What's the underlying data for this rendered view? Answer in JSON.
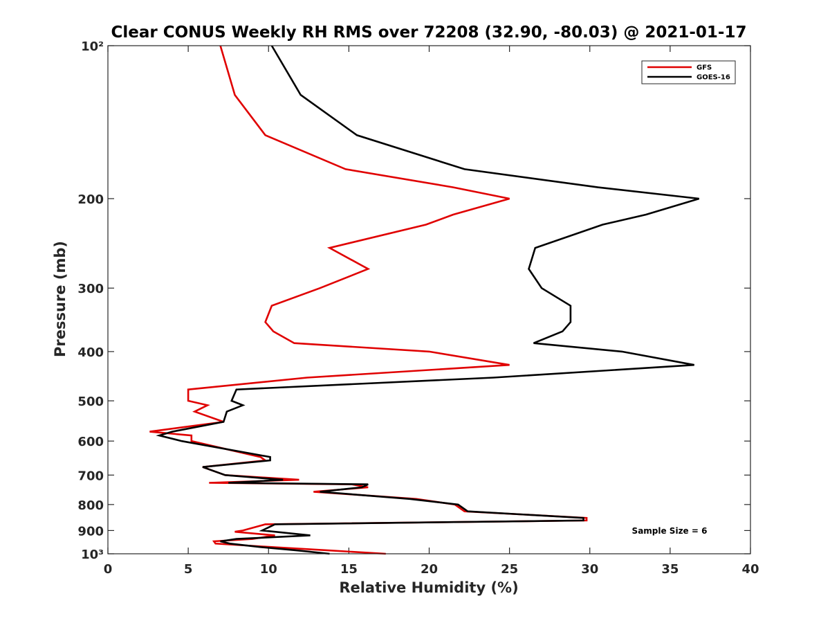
{
  "chart_data": {
    "type": "line",
    "title": "Clear CONUS Weekly RH RMS over 72208 (32.90, -80.03) @ 2021-01-17",
    "xlabel": "Relative Humidity (%)",
    "ylabel": "Pressure (mb)",
    "xlim": [
      0,
      40
    ],
    "ylim": [
      100,
      1000
    ],
    "y_scale": "log",
    "y_reversed": true,
    "grid": false,
    "legend_position": "top-right",
    "x_ticks": [
      0,
      5,
      10,
      15,
      20,
      25,
      30,
      35,
      40
    ],
    "x_tick_labels": [
      "0",
      "5",
      "10",
      "15",
      "20",
      "25",
      "30",
      "35",
      "40"
    ],
    "y_ticks": [
      100,
      200,
      300,
      400,
      500,
      600,
      700,
      800,
      900,
      1000
    ],
    "y_tick_labels": [
      "10²",
      "200",
      "300",
      "400",
      "500",
      "600",
      "700",
      "800",
      "900",
      "10³"
    ],
    "annotation": "Sample Size = 6",
    "series": [
      {
        "name": "GFS",
        "color": "#e00000",
        "points": [
          [
            7.0,
            100
          ],
          [
            7.9,
            125
          ],
          [
            9.8,
            150
          ],
          [
            14.8,
            175
          ],
          [
            21.5,
            190
          ],
          [
            25.0,
            200
          ],
          [
            21.5,
            215
          ],
          [
            19.8,
            225
          ],
          [
            13.8,
            250
          ],
          [
            16.2,
            275
          ],
          [
            13.2,
            300
          ],
          [
            10.2,
            325
          ],
          [
            9.8,
            350
          ],
          [
            10.3,
            365
          ],
          [
            11.6,
            385
          ],
          [
            20.0,
            400
          ],
          [
            25.0,
            425
          ],
          [
            12.4,
            450
          ],
          [
            5.0,
            475
          ],
          [
            5.0,
            500
          ],
          [
            6.2,
            510
          ],
          [
            5.4,
            525
          ],
          [
            7.2,
            550
          ],
          [
            2.6,
            575
          ],
          [
            5.2,
            585
          ],
          [
            5.2,
            600
          ],
          [
            9.5,
            645
          ],
          [
            9.8,
            655
          ],
          [
            5.9,
            675
          ],
          [
            7.3,
            700
          ],
          [
            11.9,
            715
          ],
          [
            6.3,
            725
          ],
          [
            15.2,
            730
          ],
          [
            16.2,
            740
          ],
          [
            12.8,
            755
          ],
          [
            19.2,
            780
          ],
          [
            21.6,
            800
          ],
          [
            22.2,
            825
          ],
          [
            29.8,
            850
          ],
          [
            29.8,
            860
          ],
          [
            9.8,
            875
          ],
          [
            8.4,
            900
          ],
          [
            7.9,
            905
          ],
          [
            10.4,
            920
          ],
          [
            9.0,
            935
          ],
          [
            6.6,
            945
          ],
          [
            6.7,
            955
          ],
          [
            10.2,
            970
          ],
          [
            13.8,
            985
          ],
          [
            17.3,
            1000
          ]
        ]
      },
      {
        "name": "GOES-16",
        "color": "#000000",
        "points": [
          [
            10.2,
            100
          ],
          [
            12.0,
            125
          ],
          [
            15.5,
            150
          ],
          [
            22.2,
            175
          ],
          [
            30.5,
            190
          ],
          [
            36.8,
            200
          ],
          [
            33.5,
            215
          ],
          [
            30.8,
            225
          ],
          [
            26.6,
            250
          ],
          [
            26.2,
            275
          ],
          [
            27.0,
            300
          ],
          [
            28.8,
            325
          ],
          [
            28.8,
            350
          ],
          [
            28.3,
            365
          ],
          [
            26.5,
            385
          ],
          [
            32.0,
            400
          ],
          [
            36.5,
            425
          ],
          [
            24.0,
            450
          ],
          [
            8.0,
            475
          ],
          [
            7.7,
            500
          ],
          [
            8.4,
            510
          ],
          [
            7.4,
            525
          ],
          [
            7.2,
            550
          ],
          [
            4.0,
            575
          ],
          [
            3.2,
            585
          ],
          [
            4.6,
            600
          ],
          [
            10.1,
            645
          ],
          [
            10.1,
            655
          ],
          [
            5.9,
            675
          ],
          [
            7.3,
            700
          ],
          [
            10.9,
            715
          ],
          [
            7.5,
            725
          ],
          [
            16.2,
            730
          ],
          [
            15.8,
            740
          ],
          [
            13.2,
            755
          ],
          [
            18.8,
            780
          ],
          [
            21.8,
            800
          ],
          [
            22.4,
            825
          ],
          [
            29.6,
            850
          ],
          [
            29.6,
            860
          ],
          [
            10.4,
            875
          ],
          [
            9.6,
            900
          ],
          [
            10.4,
            905
          ],
          [
            12.6,
            920
          ],
          [
            8.0,
            935
          ],
          [
            7.0,
            945
          ],
          [
            7.6,
            955
          ],
          [
            9.5,
            970
          ],
          [
            11.8,
            985
          ],
          [
            13.8,
            1000
          ]
        ]
      }
    ]
  }
}
